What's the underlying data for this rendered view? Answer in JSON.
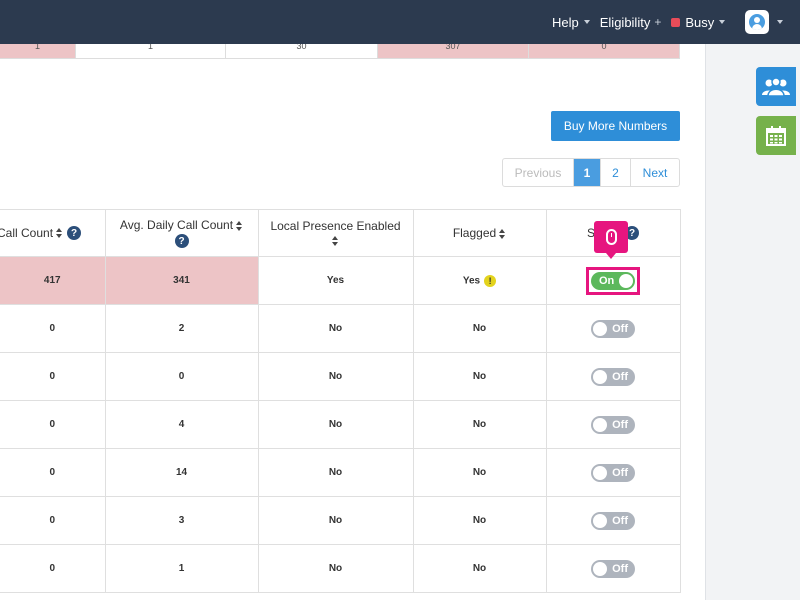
{
  "topnav": {
    "help": "Help",
    "eligibility": "Eligibility",
    "eligibility_symbol": "+",
    "status": "Busy",
    "status_color": "#e84c59"
  },
  "sidebar": {
    "users_icon": "users-icon",
    "calendar_icon": "calendar-icon"
  },
  "top_row": [
    "1",
    "1",
    "30",
    "307",
    "0"
  ],
  "buttons": {
    "buy_more_numbers": "Buy More Numbers"
  },
  "pagination": {
    "previous": "Previous",
    "pages": [
      "1",
      "2"
    ],
    "current": "1",
    "next": "Next"
  },
  "table": {
    "headers": {
      "call_count": "Call Count",
      "avg_daily_call_count": "Avg. Daily Call Count",
      "local_presence_enabled": "Local Presence Enabled",
      "flagged": "Flagged",
      "status": "Status"
    },
    "help_symbol": "?",
    "warning_symbol": "!",
    "rows": [
      {
        "call_count": "417",
        "avg_daily": "341",
        "local_presence": "Yes",
        "flagged": "Yes",
        "flag_warning": true,
        "status": "On",
        "highlighted": true
      },
      {
        "call_count": "0",
        "avg_daily": "2",
        "local_presence": "No",
        "flagged": "No",
        "status": "Off"
      },
      {
        "call_count": "0",
        "avg_daily": "0",
        "local_presence": "No",
        "flagged": "No",
        "status": "Off"
      },
      {
        "call_count": "0",
        "avg_daily": "4",
        "local_presence": "No",
        "flagged": "No",
        "status": "Off"
      },
      {
        "call_count": "0",
        "avg_daily": "14",
        "local_presence": "No",
        "flagged": "No",
        "status": "Off"
      },
      {
        "call_count": "0",
        "avg_daily": "3",
        "local_presence": "No",
        "flagged": "No",
        "status": "Off"
      },
      {
        "call_count": "0",
        "avg_daily": "1",
        "local_presence": "No",
        "flagged": "No",
        "status": "Off"
      }
    ]
  },
  "colors": {
    "topbar": "#2c3a4f",
    "primary": "#2e8ed8",
    "highlight_row": "#edc4c6",
    "toggle_on": "#5cb85c",
    "toggle_off": "#aeb4bd",
    "cursor_marker": "#e6157f"
  },
  "cursor_icon": "mouse-icon"
}
